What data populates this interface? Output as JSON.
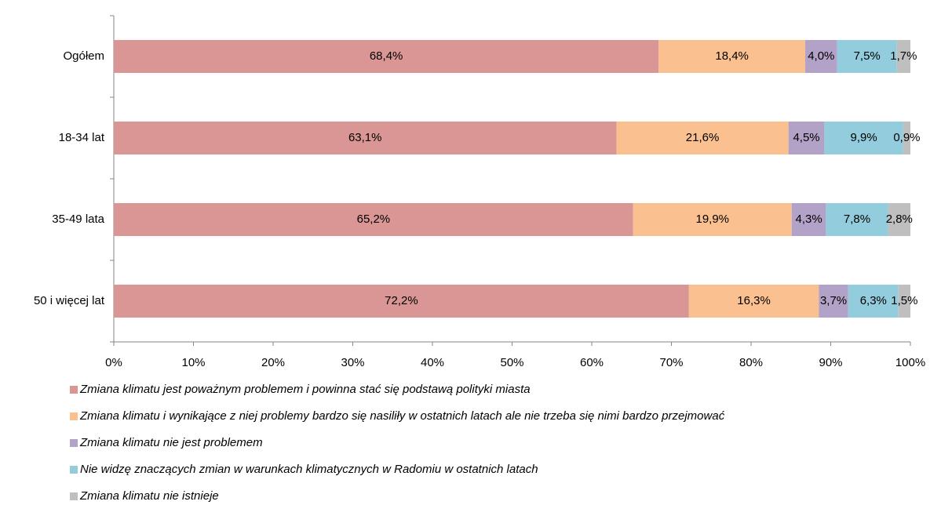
{
  "chart_data": {
    "type": "stacked_bar_horizontal",
    "categories": [
      "Ogółem",
      "18-34 lat",
      "35-49 lata",
      "50 i więcej lat"
    ],
    "series": [
      {
        "name": "Zmiana klimatu jest poważnym problemem i powinna stać się podstawą polityki miasta",
        "color": "#d99694",
        "values": [
          68.4,
          63.1,
          65.2,
          72.2
        ],
        "value_labels": [
          "68,4%",
          "63,1%",
          "65,2%",
          "72,2%"
        ]
      },
      {
        "name": "Zmiana klimatu i wynikające z niej problemy bardzo się nasiliły w ostatnich latach ale nie trzeba się nimi bardzo przejmować",
        "color": "#fac090",
        "values": [
          18.4,
          21.6,
          19.9,
          16.3
        ],
        "value_labels": [
          "18,4%",
          "21,6%",
          "19,9%",
          "16,3%"
        ]
      },
      {
        "name": "Zmiana klimatu nie jest problemem",
        "color": "#b3a2c7",
        "values": [
          4.0,
          4.5,
          4.3,
          3.7
        ],
        "value_labels": [
          "4,0%",
          "4,5%",
          "4,3%",
          "3,7%"
        ]
      },
      {
        "name": "Nie widzę znaczących zmian w warunkach klimatycznych w Radomiu w ostatnich latach",
        "color": "#93cddd",
        "values": [
          7.5,
          9.9,
          7.8,
          6.3
        ],
        "value_labels": [
          "7,5%",
          "9,9%",
          "7,8%",
          "6,3%"
        ]
      },
      {
        "name": "Zmiana klimatu nie istnieje",
        "color": "#bfbfbf",
        "values": [
          1.7,
          0.9,
          2.8,
          1.5
        ],
        "value_labels": [
          "1,7%",
          "0,9%",
          "2,8%",
          "1,5%"
        ]
      }
    ],
    "xlim": [
      0,
      100
    ],
    "xticks": [
      {
        "value": 0,
        "label": "0%"
      },
      {
        "value": 10,
        "label": "10%"
      },
      {
        "value": 20,
        "label": "20%"
      },
      {
        "value": 30,
        "label": "30%"
      },
      {
        "value": 40,
        "label": "40%"
      },
      {
        "value": 50,
        "label": "50%"
      },
      {
        "value": 60,
        "label": "60%"
      },
      {
        "value": 70,
        "label": "70%"
      },
      {
        "value": 80,
        "label": "80%"
      },
      {
        "value": 90,
        "label": "90%"
      },
      {
        "value": 100,
        "label": "100%"
      }
    ],
    "legend": "bottom"
  }
}
